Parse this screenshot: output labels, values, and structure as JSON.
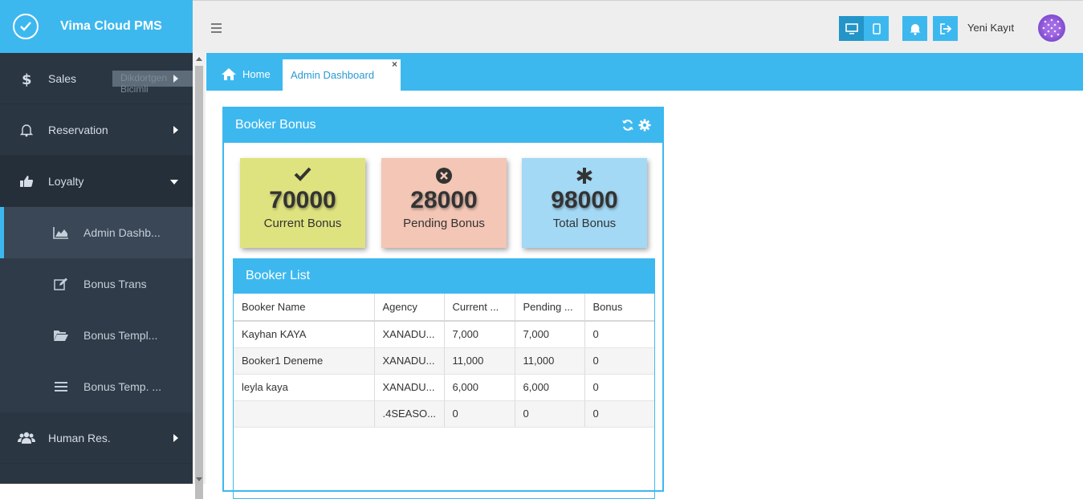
{
  "app": {
    "title": "Vima Cloud PMS"
  },
  "sidebar": {
    "items": [
      {
        "label": "Sales",
        "icon": "dollar-icon"
      },
      {
        "label": "Reservation",
        "icon": "bell-icon"
      },
      {
        "label": "Loyalty",
        "icon": "thumbs-up-icon"
      },
      {
        "label": "Human Res.",
        "icon": "users-icon"
      }
    ],
    "loyalty_sub": [
      {
        "label": "Admin Dashb...",
        "icon": "area-chart-icon"
      },
      {
        "label": "Bonus Trans",
        "icon": "edit-icon"
      },
      {
        "label": "Bonus Templ...",
        "icon": "folder-open-icon"
      },
      {
        "label": "Bonus Temp. ...",
        "icon": "list-icon"
      }
    ],
    "ghost_text": "Dikdortgen Bicimli"
  },
  "header": {
    "user_name": "Yeni Kayıt"
  },
  "tabs": {
    "home": "Home",
    "active": "Admin Dashboard",
    "close": "×"
  },
  "panel": {
    "title": "Booker Bonus",
    "stats": [
      {
        "value": "70000",
        "label": "Current Bonus"
      },
      {
        "value": "28000",
        "label": "Pending Bonus"
      },
      {
        "value": "98000",
        "label": "Total Bonus"
      }
    ]
  },
  "booker_list": {
    "title": "Booker List",
    "columns": [
      "Booker Name",
      "Agency",
      "Current ...",
      "Pending ...",
      "Bonus"
    ],
    "rows": [
      [
        "Kayhan KAYA",
        "XANADU...",
        "7,000",
        "7,000",
        "0"
      ],
      [
        "Booker1 Deneme",
        "XANADU...",
        "11,000",
        "11,000",
        "0"
      ],
      [
        "leyla kaya",
        "XANADU...",
        "6,000",
        "6,000",
        "0"
      ],
      [
        "",
        ".4SEASO...",
        "0",
        "0",
        "0"
      ]
    ]
  },
  "colors": {
    "accent": "#3db8ef",
    "sidebar": "#2b3643",
    "current": "#dfe37f",
    "pending": "#f3c6b5",
    "total": "#a3d9f5"
  }
}
